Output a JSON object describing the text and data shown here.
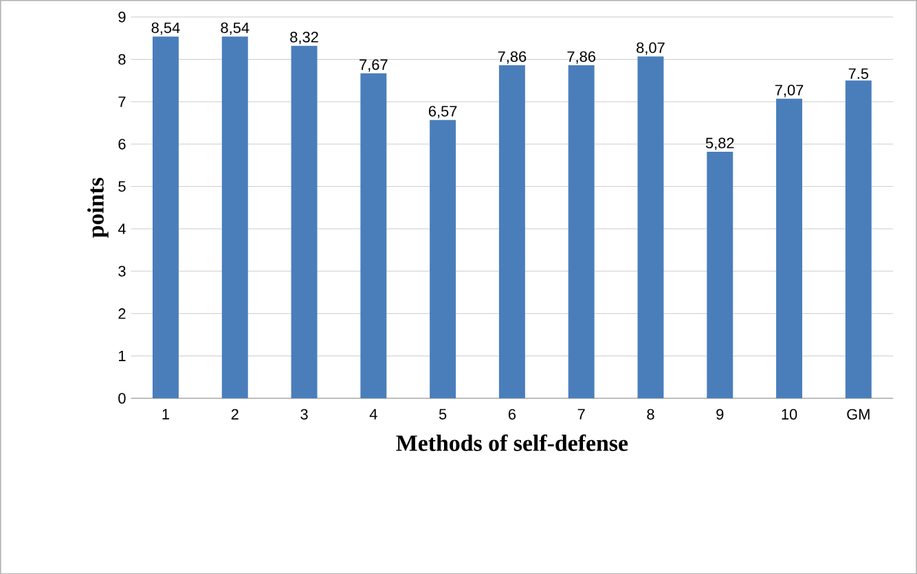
{
  "chart_data": {
    "type": "bar",
    "xlabel": "Methods of self-defense",
    "ylabel": "points",
    "categories": [
      "1",
      "2",
      "3",
      "4",
      "5",
      "6",
      "7",
      "8",
      "9",
      "10",
      "GM"
    ],
    "values": [
      8.54,
      8.54,
      8.32,
      7.67,
      6.57,
      7.86,
      7.86,
      8.07,
      5.82,
      7.07,
      7.5
    ],
    "value_labels": [
      "8,54",
      "8,54",
      "8,32",
      "7,67",
      "6,57",
      "7,86",
      "7,86",
      "8,07",
      "5,82",
      "7,07",
      "7.5"
    ],
    "color": "#4a7ebb",
    "ylim": [
      0,
      9
    ],
    "yticks": [
      0,
      1,
      2,
      3,
      4,
      5,
      6,
      7,
      8,
      9
    ],
    "grid": "y"
  }
}
